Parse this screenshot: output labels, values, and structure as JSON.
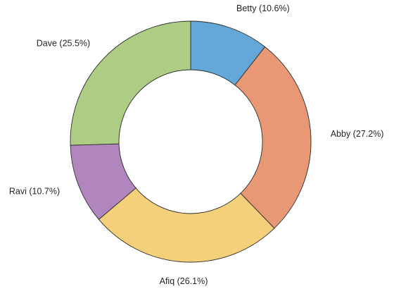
{
  "chart_data": {
    "type": "pie",
    "donut": true,
    "title": "",
    "start": "12 o'clock, clockwise",
    "slices": [
      {
        "name": "Betty",
        "value": 10.6,
        "label": "Betty (10.6%)",
        "color": "#63a8d8"
      },
      {
        "name": "Abby",
        "value": 27.2,
        "label": "Abby (27.2%)",
        "color": "#e99875"
      },
      {
        "name": "Afiq",
        "value": 26.1,
        "label": "Afiq (26.1%)",
        "color": "#f4d07a"
      },
      {
        "name": "Ravi",
        "value": 10.7,
        "label": "Ravi (10.7%)",
        "color": "#b185bd"
      },
      {
        "name": "Dave",
        "value": 25.5,
        "label": "Dave (25.5%)",
        "color": "#aecd84"
      }
    ],
    "legend": "none"
  }
}
